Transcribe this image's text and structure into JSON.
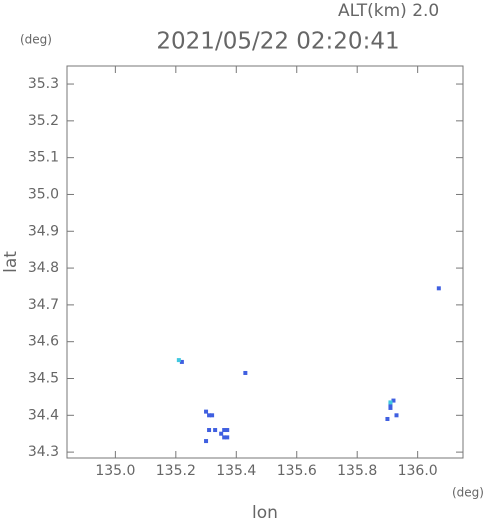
{
  "chart_data": {
    "type": "scatter",
    "title": "2021/05/22 02:20:41",
    "subtitle": "ALT(km) 2.0",
    "x_label": "lon",
    "y_label": "lat",
    "x_unit": "(deg)",
    "y_unit": "(deg)",
    "xlim": [
      134.84,
      136.15
    ],
    "ylim": [
      34.284,
      35.349
    ],
    "xticks": [
      {
        "value": 135,
        "label": "135.0"
      },
      {
        "value": 135.2,
        "label": "135.2"
      },
      {
        "value": 135.4,
        "label": "135.4"
      },
      {
        "value": 135.6,
        "label": "135.6"
      },
      {
        "value": 135.8,
        "label": "135.8"
      },
      {
        "value": 136,
        "label": "136.0"
      }
    ],
    "yticks": [
      34.3,
      34.4,
      34.5,
      34.6,
      34.7,
      34.8,
      34.9,
      {
        "value": 35,
        "label": "35.0"
      },
      35.1,
      35.2,
      35.3
    ],
    "series": [
      {
        "color": "#3f5fe0",
        "x": [
          135.22,
          135.3,
          135.31,
          135.32,
          135.31,
          135.33,
          135.3,
          135.35,
          135.36,
          135.37,
          135.36,
          135.37,
          135.43,
          135.91,
          135.92,
          135.91,
          135.9,
          135.93,
          136.07
        ],
        "y": [
          34.545,
          34.41,
          34.4,
          34.4,
          34.36,
          34.36,
          34.33,
          34.35,
          34.34,
          34.36,
          34.36,
          34.34,
          34.515,
          34.43,
          34.44,
          34.42,
          34.39,
          34.4,
          34.745
        ]
      },
      {
        "color": "#40c8e0",
        "x": [
          135.21,
          135.91
        ],
        "y": [
          34.55,
          34.435
        ]
      }
    ]
  }
}
